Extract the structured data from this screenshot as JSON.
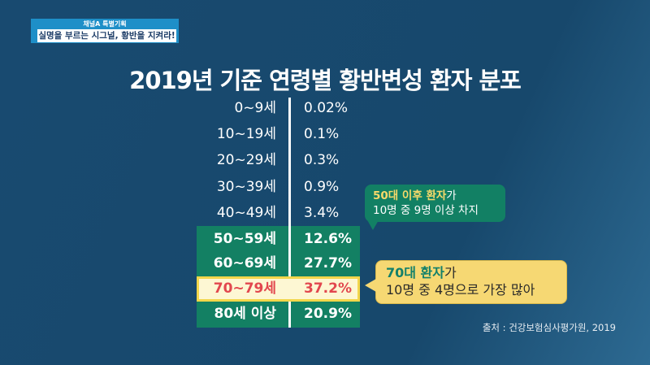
{
  "badge": {
    "channel": "채널A 특별기획",
    "subtitle": "실명을 부르는 시그널, 황반을 지켜라!"
  },
  "title": "2019년 기준 연령별 황반변성 환자 분포",
  "rows": [
    {
      "age": "0~9세",
      "pct": "0.02%"
    },
    {
      "age": "10~19세",
      "pct": "0.1%"
    },
    {
      "age": "20~29세",
      "pct": "0.3%"
    },
    {
      "age": "30~39세",
      "pct": "0.9%"
    },
    {
      "age": "40~49세",
      "pct": "3.4%"
    },
    {
      "age": "50~59세",
      "pct": "12.6%"
    },
    {
      "age": "60~69세",
      "pct": "27.7%"
    },
    {
      "age": "70~79세",
      "pct": "37.2%"
    },
    {
      "age": "80세 이상",
      "pct": "20.9%"
    }
  ],
  "callout1": {
    "highlight": "50대 이후 환자",
    "rest": "가",
    "line2": "10명 중 9명 이상 차지"
  },
  "callout2": {
    "highlight": "70대 환자",
    "rest": "가",
    "line2": "10명 중 4명으로 가장 많아"
  },
  "source": "출처 : 건강보험심사평가원, 2019",
  "colors": {
    "background": "#174a6e",
    "green": "#138063",
    "yellow": "#f6d873",
    "highlight_red": "#e2474e"
  }
}
